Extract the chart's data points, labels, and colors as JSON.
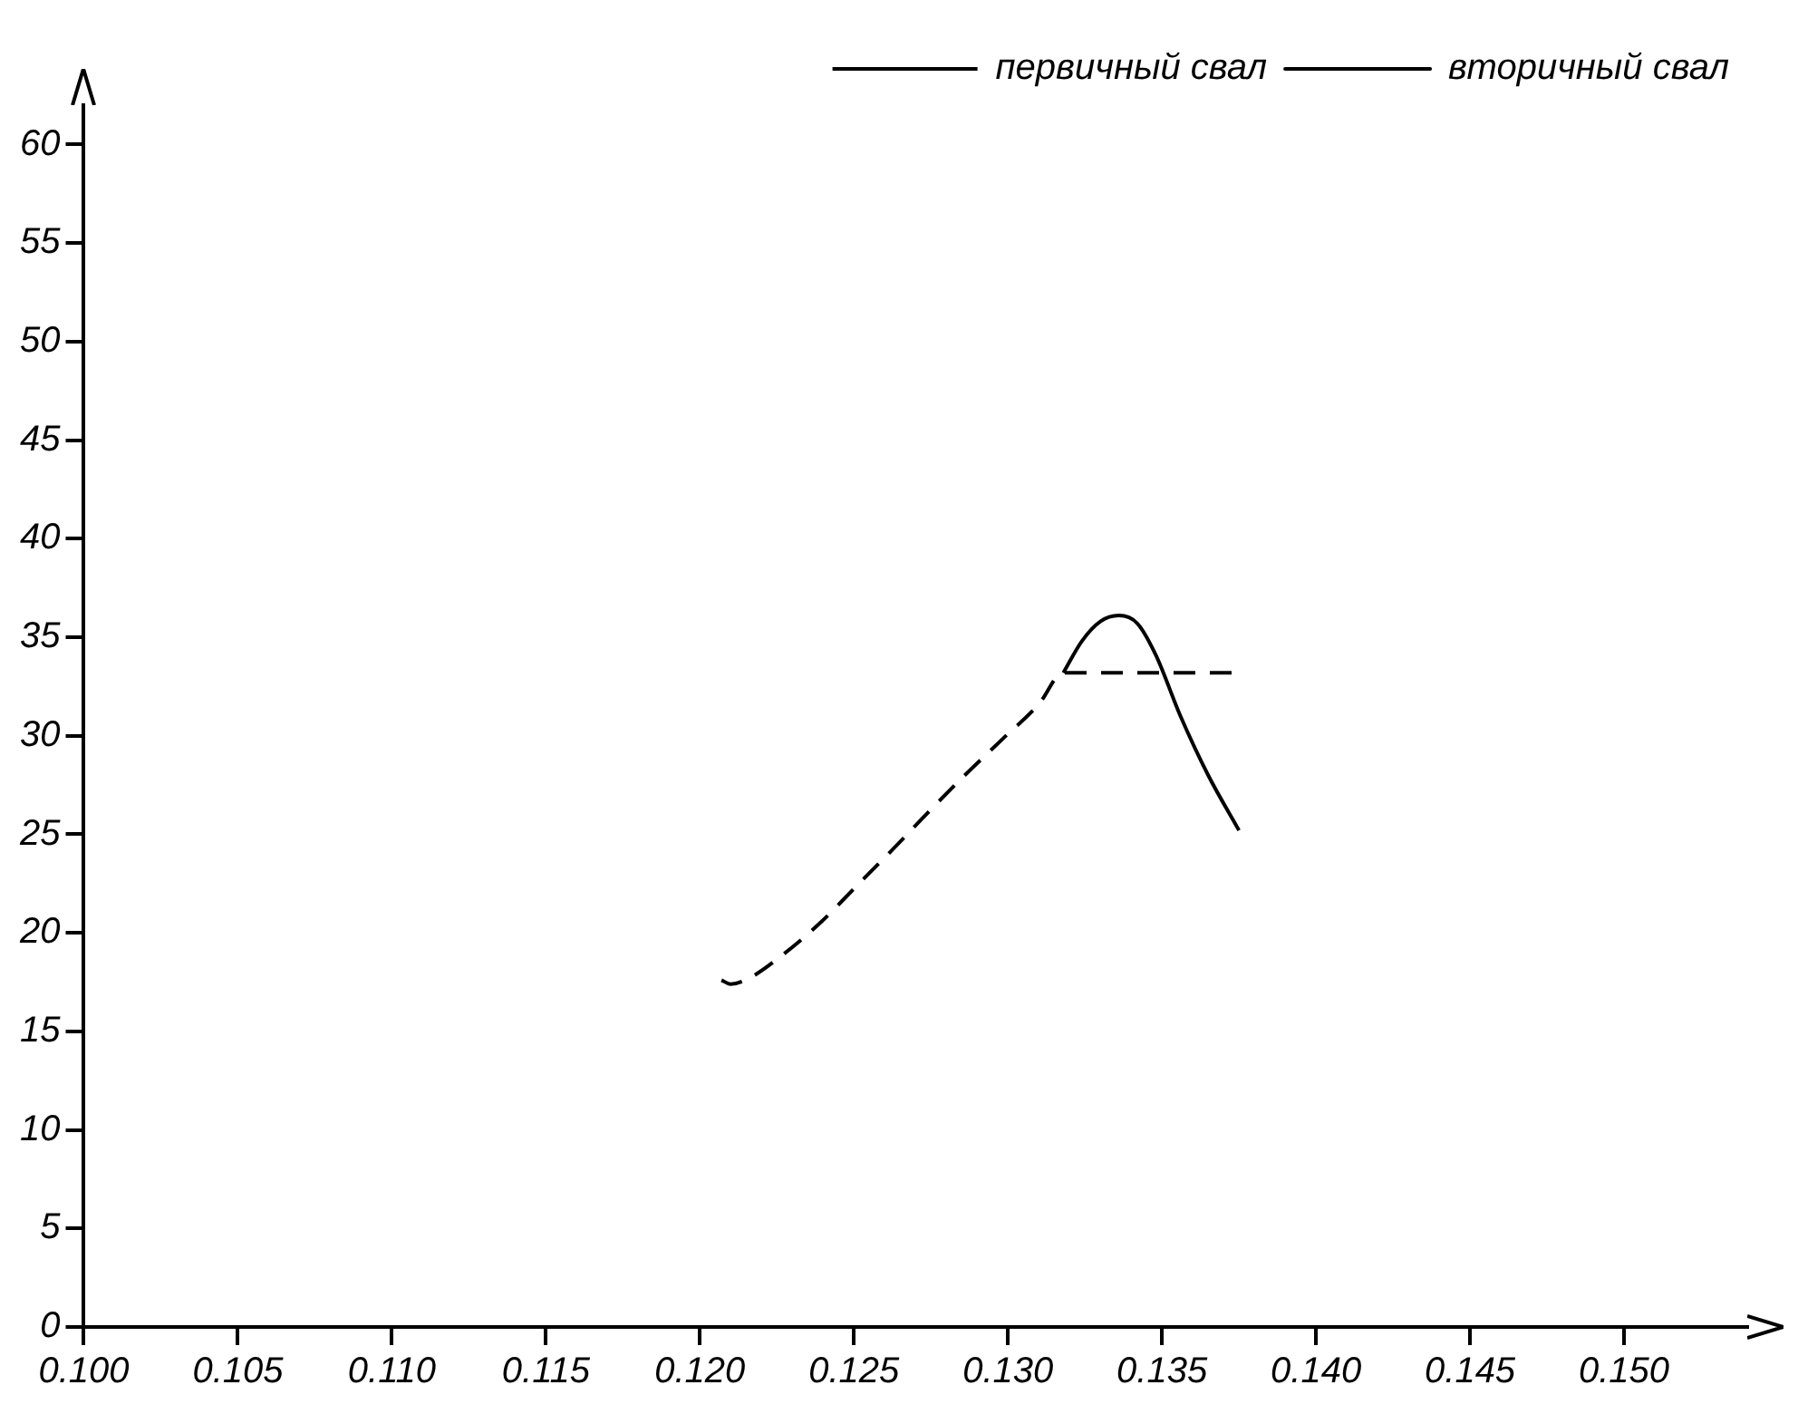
{
  "chart_data": {
    "type": "line",
    "xlim": [
      0.1,
      0.154
    ],
    "ylim": [
      0,
      62
    ],
    "xticks": [
      {
        "value": 0.1,
        "label": "0.100"
      },
      {
        "value": 0.105,
        "label": "0.105"
      },
      {
        "value": 0.11,
        "label": "0.110"
      },
      {
        "value": 0.115,
        "label": "0.115"
      },
      {
        "value": 0.12,
        "label": "0.120"
      },
      {
        "value": 0.125,
        "label": "0.125"
      },
      {
        "value": 0.13,
        "label": "0.130"
      },
      {
        "value": 0.135,
        "label": "0.135"
      },
      {
        "value": 0.14,
        "label": "0.140"
      },
      {
        "value": 0.145,
        "label": "0.145"
      },
      {
        "value": 0.15,
        "label": "0.150"
      }
    ],
    "yticks": [
      0,
      5,
      10,
      15,
      20,
      25,
      30,
      35,
      40,
      45,
      50,
      55,
      60
    ],
    "legend": "top right",
    "marker": "none",
    "series": [
      {
        "name": "первичный свал",
        "color": "#000000",
        "line_style": "dashed",
        "x": [
          0.1207,
          0.121,
          0.1216,
          0.1227,
          0.1239,
          0.1251,
          0.1263,
          0.1274,
          0.1286,
          0.1298,
          0.131,
          0.1318,
          0.1374
        ],
        "values": [
          17.6,
          17.4,
          17.7,
          18.9,
          20.5,
          22.4,
          24.3,
          26.1,
          28.0,
          29.8,
          31.6,
          33.2,
          33.2
        ]
      },
      {
        "name": "вторичный свал",
        "color": "#000000",
        "line_style": "solid",
        "x": [
          0.1318,
          0.1324,
          0.133,
          0.1336,
          0.1342,
          0.1348,
          0.1356,
          0.1365,
          0.1375
        ],
        "values": [
          33.2,
          34.8,
          35.8,
          36.1,
          35.7,
          34.1,
          31.0,
          28.0,
          25.2
        ]
      }
    ]
  }
}
